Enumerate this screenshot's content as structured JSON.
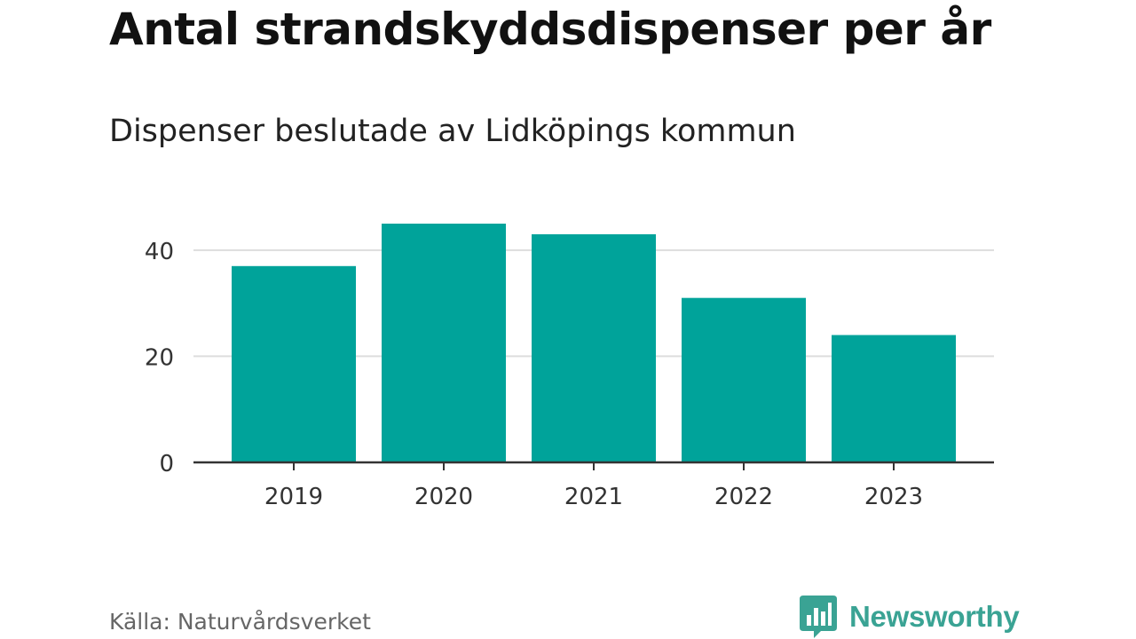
{
  "header": {
    "title": "Antal strandskyddsdispenser per år",
    "subtitle": "Dispenser beslutade av Lidköpings kommun"
  },
  "footer": {
    "source": "Källa: Naturvårdsverket",
    "brand": "Newsworthy"
  },
  "colors": {
    "bar": "#00a39a",
    "grid": "#dddddd",
    "axis": "#333333",
    "brand": "#3aa394"
  },
  "chart_data": {
    "type": "bar",
    "title": "Antal strandskyddsdispenser per år",
    "subtitle": "Dispenser beslutade av Lidköpings kommun",
    "categories": [
      "2019",
      "2020",
      "2021",
      "2022",
      "2023"
    ],
    "values": [
      37,
      45,
      43,
      31,
      24
    ],
    "xlabel": "",
    "ylabel": "",
    "ylim": [
      0,
      46
    ],
    "yticks": [
      0,
      20,
      40
    ],
    "grid": true,
    "legend": "none"
  }
}
